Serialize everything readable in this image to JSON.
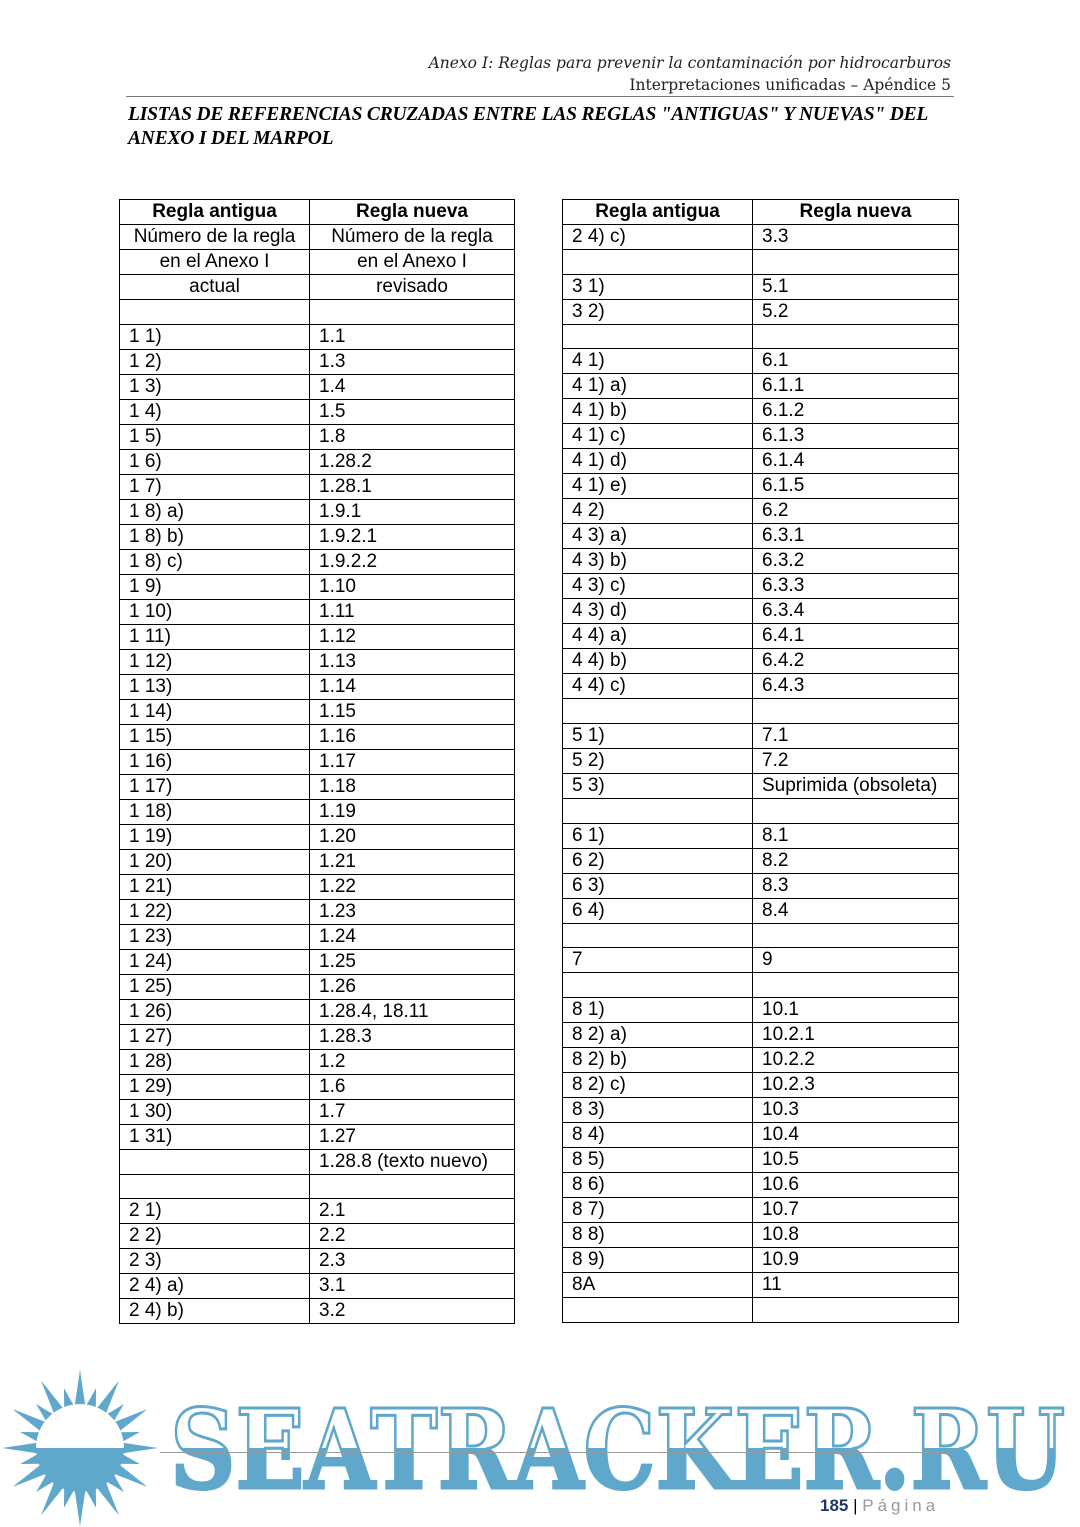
{
  "header": {
    "line1": "Anexo I: Reglas para prevenir la contaminación por hidrocarburos",
    "line2": "Interpretaciones unificadas – Apéndice 5"
  },
  "title": "LISTAS DE REFERENCIAS CRUZADAS ENTRE LAS REGLAS \"ANTIGUAS\" Y NUEVAS\" DEL ANEXO I DEL MARPOL",
  "left_table": {
    "headers": [
      [
        "Regla antigua",
        "Regla nueva"
      ],
      [
        "Número de la regla",
        "Número de la regla"
      ],
      [
        "en el Anexo I",
        "en el Anexo I"
      ],
      [
        "actual",
        "revisado"
      ]
    ],
    "rows": [
      [
        "",
        ""
      ],
      [
        "1 1)",
        "1.1"
      ],
      [
        "1 2)",
        "1.3"
      ],
      [
        "1 3)",
        "1.4"
      ],
      [
        "1 4)",
        "1.5"
      ],
      [
        "1 5)",
        "1.8"
      ],
      [
        "1 6)",
        "1.28.2"
      ],
      [
        "1 7)",
        "1.28.1"
      ],
      [
        "1 8) a)",
        "1.9.1"
      ],
      [
        "1 8) b)",
        "1.9.2.1"
      ],
      [
        "1 8) c)",
        "1.9.2.2"
      ],
      [
        "1 9)",
        "1.10"
      ],
      [
        "1 10)",
        "1.11"
      ],
      [
        "1 11)",
        "1.12"
      ],
      [
        "1 12)",
        "1.13"
      ],
      [
        "1 13)",
        "1.14"
      ],
      [
        "1 14)",
        "1.15"
      ],
      [
        "1 15)",
        "1.16"
      ],
      [
        "1 16)",
        "1.17"
      ],
      [
        "1 17)",
        "1.18"
      ],
      [
        "1 18)",
        "1.19"
      ],
      [
        "1 19)",
        "1.20"
      ],
      [
        "1 20)",
        "1.21"
      ],
      [
        "1 21)",
        "1.22"
      ],
      [
        "1 22)",
        "1.23"
      ],
      [
        "1 23)",
        "1.24"
      ],
      [
        "1 24)",
        "1.25"
      ],
      [
        "1 25)",
        "1.26"
      ],
      [
        "1 26)",
        "1.28.4, 18.11"
      ],
      [
        "1 27)",
        "1.28.3"
      ],
      [
        "1 28)",
        "1.2"
      ],
      [
        "1 29)",
        "1.6"
      ],
      [
        "1 30)",
        "1.7"
      ],
      [
        "1 31)",
        "1.27"
      ],
      [
        "",
        "1.28.8 (texto nuevo)"
      ],
      [
        "",
        ""
      ],
      [
        "2 1)",
        "2.1"
      ],
      [
        "2 2)",
        "2.2"
      ],
      [
        "2 3)",
        "2.3"
      ],
      [
        "2 4) a)",
        "3.1"
      ],
      [
        "2 4) b)",
        "3.2"
      ]
    ]
  },
  "right_table": {
    "headers": [
      [
        "Regla antigua",
        "Regla nueva"
      ]
    ],
    "rows": [
      [
        "2 4) c)",
        "3.3"
      ],
      [
        "",
        ""
      ],
      [
        "3 1)",
        "5.1"
      ],
      [
        "3 2)",
        "5.2"
      ],
      [
        "",
        ""
      ],
      [
        "4 1)",
        "6.1"
      ],
      [
        "4 1) a)",
        "6.1.1"
      ],
      [
        "4 1) b)",
        "6.1.2"
      ],
      [
        "4 1) c)",
        "6.1.3"
      ],
      [
        "4 1) d)",
        "6.1.4"
      ],
      [
        "4 1) e)",
        "6.1.5"
      ],
      [
        "4 2)",
        "6.2"
      ],
      [
        "4 3) a)",
        "6.3.1"
      ],
      [
        "4 3) b)",
        "6.3.2"
      ],
      [
        "4 3) c)",
        "6.3.3"
      ],
      [
        "4 3) d)",
        "6.3.4"
      ],
      [
        "4 4) a)",
        "6.4.1"
      ],
      [
        "4 4) b)",
        "6.4.2"
      ],
      [
        "4 4) c)",
        "6.4.3"
      ],
      [
        "",
        ""
      ],
      [
        "5 1)",
        "7.1"
      ],
      [
        "5 2)",
        "7.2"
      ],
      [
        "5 3)",
        "Suprimida (obsoleta)"
      ],
      [
        "",
        ""
      ],
      [
        "6 1)",
        "8.1"
      ],
      [
        "6 2)",
        "8.2"
      ],
      [
        "6 3)",
        "8.3"
      ],
      [
        "6 4)",
        "8.4"
      ],
      [
        "",
        ""
      ],
      [
        "7",
        "9"
      ],
      [
        "",
        ""
      ],
      [
        "8 1)",
        "10.1"
      ],
      [
        "8 2) a)",
        "10.2.1"
      ],
      [
        "8 2) b)",
        "10.2.2"
      ],
      [
        "8 2) c)",
        "10.2.3"
      ],
      [
        "8 3)",
        "10.3"
      ],
      [
        "8 4)",
        "10.4"
      ],
      [
        "8 5)",
        "10.5"
      ],
      [
        "8 6)",
        "10.6"
      ],
      [
        "8 7)",
        "10.7"
      ],
      [
        "8 8)",
        "10.8"
      ],
      [
        "8 9)",
        "10.9"
      ],
      [
        "8A",
        "11"
      ],
      [
        "",
        ""
      ]
    ]
  },
  "footer": {
    "page_number": "185",
    "separator": "|",
    "page_label": "Página"
  },
  "watermark": {
    "text": "SEATRACKER.RU",
    "color": "#5fa8cc",
    "icon": "sun-icon"
  }
}
